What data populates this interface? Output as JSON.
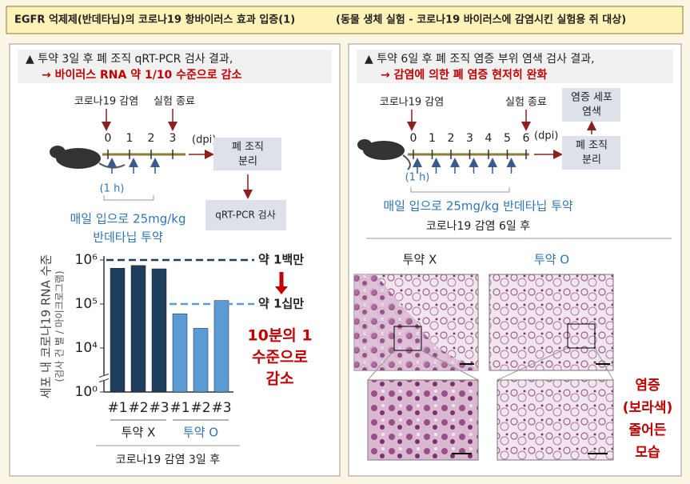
{
  "header": {
    "title": "EGFR 억제제(반데타닙)의 코로나19 항바이러스 효과 입증(1)",
    "subtitle": "(동물 생체 실험 - 코로나19 바이러스에 감염시킨 실험용 쥐 대상)"
  },
  "left": {
    "heading": "▲ 투약 3일 후 폐 조직 qRT-PCR 검사 결과,",
    "result": "→ 바이러스 RNA 약 1/10 수준으로 감소",
    "infection": "코로나19 감염",
    "end": "실험 종료",
    "days": [
      "0",
      "1",
      "2",
      "3"
    ],
    "unit": "(dpi)",
    "dose_time": "(1 h)",
    "dosing": [
      "매일 입으로 25mg/kg",
      "반데타닙 투약"
    ],
    "boxes": [
      [
        "폐 조직",
        "분리"
      ],
      [
        "qRT-PCR 검사"
      ]
    ]
  },
  "chart_data": {
    "type": "bar",
    "log_scale": true,
    "axis_break": true,
    "ylabel": [
      "세포 내 코로나19 RNA 수준",
      "(검사 건 별 / 마이크로그램)"
    ],
    "categories": [
      "#1",
      "#2",
      "#3",
      "#1",
      "#2",
      "#3"
    ],
    "values": [
      650000,
      750000,
      630000,
      60000,
      28000,
      120000
    ],
    "bar_colors": [
      "#1f3d5c",
      "#1f3d5c",
      "#1f3d5c",
      "#5b9bd5",
      "#5b9bd5",
      "#5b9bd5"
    ],
    "group_labels": [
      "투약 X",
      "투약 O"
    ],
    "group_label_colors": [
      "#222222",
      "#2e75b6"
    ],
    "xlabel": "코로나19 감염 3일 후",
    "ylim": [
      1,
      1000000
    ],
    "yticks": [
      {
        "value": 1,
        "label": "10⁰"
      },
      {
        "value": 10000,
        "label": "10⁴"
      },
      {
        "value": 100000,
        "label": "10⁵"
      },
      {
        "value": 1000000,
        "label": "10⁶"
      }
    ],
    "reference_lines": [
      {
        "value": 1000000,
        "label": "약 1백만",
        "color": "#1f3d5c"
      },
      {
        "value": 100000,
        "label": "약 1십만",
        "color": "#5b9bd5"
      }
    ],
    "annotation": [
      "10분의 1",
      "수준으로",
      "감소"
    ]
  },
  "right": {
    "heading": "▲ 투약 6일 후 폐 조직 염증 부위 염색 검사 결과,",
    "result": "→ 감염에 의한 폐 염증 현저히 완화",
    "infection": "코로나19 감염",
    "end": "실험 종료",
    "days": [
      "0",
      "1",
      "2",
      "3",
      "4",
      "5",
      "6"
    ],
    "unit": "(dpi)",
    "dose_time": "(1 h)",
    "dosing": "매일 입으로 25mg/kg 반데타닙 투약",
    "boxes": [
      [
        "염증 세포",
        "염색"
      ],
      [
        "폐 조직",
        "분리"
      ]
    ],
    "caption": "코로나19 감염 6일 후",
    "groups": [
      "투약 X",
      "투약 O"
    ],
    "annotation": [
      "염증",
      "(보라색)",
      "줄어든",
      "모습"
    ]
  }
}
